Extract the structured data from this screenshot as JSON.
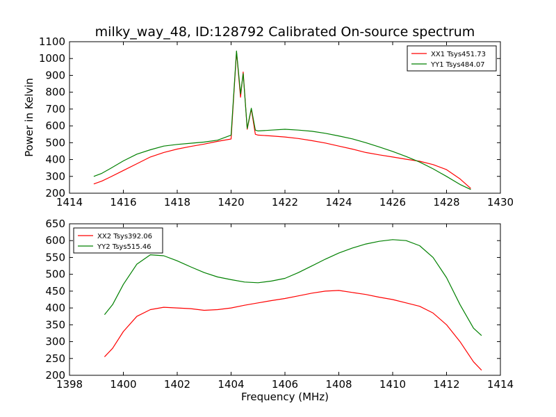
{
  "chart_data": [
    {
      "type": "line",
      "title": "milky_way_48, ID:128792 Calibrated On-source spectrum",
      "xlabel": "",
      "ylabel": "Power in Kelvin",
      "xlim": [
        1414,
        1430
      ],
      "ylim": [
        200,
        1100
      ],
      "xticks": [
        1414,
        1416,
        1418,
        1420,
        1422,
        1424,
        1426,
        1428,
        1430
      ],
      "yticks": [
        200,
        300,
        400,
        500,
        600,
        700,
        800,
        900,
        1000,
        1100
      ],
      "legend_position": "top-right",
      "series": [
        {
          "name": "XX1 Tsys451.73",
          "color": "#ff0000",
          "points": [
            [
              1414.9,
              255
            ],
            [
              1415.2,
              272
            ],
            [
              1415.5,
              295
            ],
            [
              1416.0,
              335
            ],
            [
              1416.5,
              375
            ],
            [
              1417.0,
              415
            ],
            [
              1417.5,
              442
            ],
            [
              1418.0,
              462
            ],
            [
              1418.5,
              478
            ],
            [
              1419.0,
              492
            ],
            [
              1419.5,
              508
            ],
            [
              1420.0,
              522
            ],
            [
              1420.2,
              1040
            ],
            [
              1420.35,
              770
            ],
            [
              1420.45,
              920
            ],
            [
              1420.6,
              580
            ],
            [
              1420.75,
              700
            ],
            [
              1420.9,
              550
            ],
            [
              1421.0,
              545
            ],
            [
              1421.5,
              540
            ],
            [
              1422.0,
              534
            ],
            [
              1422.5,
              525
            ],
            [
              1423.0,
              512
            ],
            [
              1423.5,
              498
            ],
            [
              1424.0,
              480
            ],
            [
              1424.5,
              462
            ],
            [
              1425.0,
              442
            ],
            [
              1425.5,
              428
            ],
            [
              1426.0,
              415
            ],
            [
              1426.5,
              402
            ],
            [
              1427.0,
              390
            ],
            [
              1427.5,
              370
            ],
            [
              1428.0,
              340
            ],
            [
              1428.5,
              285
            ],
            [
              1428.9,
              228
            ]
          ]
        },
        {
          "name": "YY1 Tsys484.07",
          "color": "#008000",
          "points": [
            [
              1414.9,
              300
            ],
            [
              1415.2,
              318
            ],
            [
              1415.5,
              345
            ],
            [
              1416.0,
              392
            ],
            [
              1416.5,
              432
            ],
            [
              1417.0,
              458
            ],
            [
              1417.5,
              480
            ],
            [
              1418.0,
              490
            ],
            [
              1418.5,
              497
            ],
            [
              1419.0,
              504
            ],
            [
              1419.5,
              515
            ],
            [
              1420.0,
              545
            ],
            [
              1420.2,
              1045
            ],
            [
              1420.35,
              790
            ],
            [
              1420.45,
              910
            ],
            [
              1420.6,
              585
            ],
            [
              1420.75,
              705
            ],
            [
              1420.9,
              575
            ],
            [
              1421.0,
              570
            ],
            [
              1421.5,
              575
            ],
            [
              1422.0,
              580
            ],
            [
              1422.5,
              575
            ],
            [
              1423.0,
              568
            ],
            [
              1423.5,
              556
            ],
            [
              1424.0,
              540
            ],
            [
              1424.5,
              523
            ],
            [
              1425.0,
              500
            ],
            [
              1425.5,
              475
            ],
            [
              1426.0,
              448
            ],
            [
              1426.5,
              418
            ],
            [
              1427.0,
              385
            ],
            [
              1427.5,
              345
            ],
            [
              1428.0,
              300
            ],
            [
              1428.5,
              252
            ],
            [
              1428.9,
              222
            ]
          ]
        }
      ]
    },
    {
      "type": "line",
      "title": "",
      "xlabel": "Frequency (MHz)",
      "ylabel": "",
      "xlim": [
        1398,
        1414
      ],
      "ylim": [
        200,
        650
      ],
      "xticks": [
        1398,
        1400,
        1402,
        1404,
        1406,
        1408,
        1410,
        1412,
        1414
      ],
      "yticks": [
        200,
        250,
        300,
        350,
        400,
        450,
        500,
        550,
        600,
        650
      ],
      "legend_position": "top-left",
      "series": [
        {
          "name": "XX2 Tsys392.06",
          "color": "#ff0000",
          "points": [
            [
              1399.3,
              255
            ],
            [
              1399.6,
              280
            ],
            [
              1400.0,
              330
            ],
            [
              1400.5,
              375
            ],
            [
              1401.0,
              395
            ],
            [
              1401.5,
              402
            ],
            [
              1402.0,
              400
            ],
            [
              1402.5,
              398
            ],
            [
              1403.0,
              393
            ],
            [
              1403.5,
              395
            ],
            [
              1404.0,
              400
            ],
            [
              1404.5,
              408
            ],
            [
              1405.0,
              415
            ],
            [
              1405.5,
              422
            ],
            [
              1406.0,
              428
            ],
            [
              1406.5,
              436
            ],
            [
              1407.0,
              444
            ],
            [
              1407.5,
              450
            ],
            [
              1408.0,
              452
            ],
            [
              1408.5,
              446
            ],
            [
              1409.0,
              440
            ],
            [
              1409.5,
              432
            ],
            [
              1410.0,
              425
            ],
            [
              1410.5,
              415
            ],
            [
              1411.0,
              405
            ],
            [
              1411.5,
              385
            ],
            [
              1412.0,
              350
            ],
            [
              1412.5,
              300
            ],
            [
              1413.0,
              240
            ],
            [
              1413.3,
              215
            ]
          ]
        },
        {
          "name": "YY2 Tsys515.46",
          "color": "#008000",
          "points": [
            [
              1399.3,
              380
            ],
            [
              1399.6,
              410
            ],
            [
              1400.0,
              470
            ],
            [
              1400.5,
              530
            ],
            [
              1401.0,
              558
            ],
            [
              1401.5,
              555
            ],
            [
              1402.0,
              540
            ],
            [
              1402.5,
              522
            ],
            [
              1403.0,
              505
            ],
            [
              1403.5,
              492
            ],
            [
              1404.0,
              484
            ],
            [
              1404.5,
              477
            ],
            [
              1405.0,
              475
            ],
            [
              1405.5,
              480
            ],
            [
              1406.0,
              488
            ],
            [
              1406.5,
              505
            ],
            [
              1407.0,
              525
            ],
            [
              1407.5,
              545
            ],
            [
              1408.0,
              563
            ],
            [
              1408.5,
              578
            ],
            [
              1409.0,
              590
            ],
            [
              1409.5,
              598
            ],
            [
              1410.0,
              603
            ],
            [
              1410.5,
              600
            ],
            [
              1411.0,
              585
            ],
            [
              1411.5,
              550
            ],
            [
              1412.0,
              490
            ],
            [
              1412.5,
              410
            ],
            [
              1413.0,
              340
            ],
            [
              1413.3,
              318
            ]
          ]
        }
      ]
    }
  ]
}
